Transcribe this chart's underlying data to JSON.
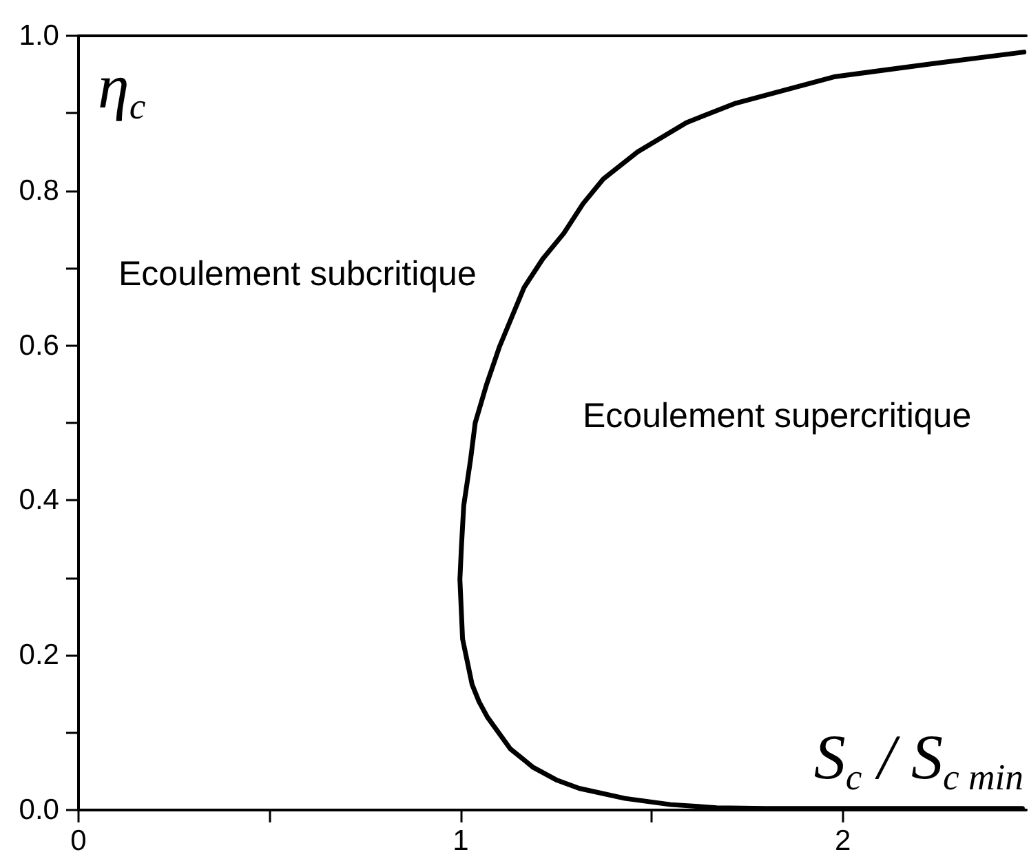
{
  "chart_data": {
    "type": "line",
    "xlabel": "S$_{c}$ / S$_{c min}$",
    "ylabel": "η$_{c}$",
    "annotations": [
      "Ecoulement subcritique",
      "Ecoulement supercritique"
    ],
    "xlim": [
      0,
      2.48
    ],
    "ylim": [
      0,
      1
    ],
    "xticks": [
      0,
      {
        "value": 0.5,
        "label": null
      },
      1,
      {
        "value": 1.5,
        "label": null
      },
      2
    ],
    "yticks": [
      {
        "value": 0,
        "label": "0.0"
      },
      {
        "value": 0.1,
        "label": null
      },
      {
        "value": 0.2,
        "label": "0.2"
      },
      {
        "value": 0.3,
        "label": null
      },
      {
        "value": 0.4,
        "label": "0.4"
      },
      {
        "value": 0.5,
        "label": null
      },
      {
        "value": 0.6,
        "label": "0.6"
      },
      {
        "value": 0.7,
        "label": null
      },
      {
        "value": 0.8,
        "label": "0.8"
      },
      {
        "value": 0.9,
        "label": null
      },
      {
        "value": 1,
        "label": "1.0"
      }
    ],
    "series": [
      {
        "color": "#000000",
        "x": [
          2.47,
          2.1,
          1.8,
          1.67,
          1.55,
          1.43,
          1.31,
          1.25,
          1.19,
          1.13,
          1.07,
          1.048,
          1.03,
          1.005,
          0.998,
          1.002,
          1.008,
          1.026,
          1.038,
          1.068,
          1.102,
          1.166,
          1.215,
          1.27,
          1.32,
          1.373,
          1.463,
          1.591,
          1.72,
          1.977,
          2.234,
          2.474
        ],
        "values": [
          0.002,
          0.002,
          0.002,
          0.003,
          0.007,
          0.015,
          0.028,
          0.039,
          0.055,
          0.079,
          0.12,
          0.14,
          0.162,
          0.221,
          0.298,
          0.34,
          0.393,
          0.453,
          0.5,
          0.55,
          0.599,
          0.675,
          0.712,
          0.745,
          0.783,
          0.815,
          0.85,
          0.888,
          0.913,
          0.947,
          0.964,
          0.979
        ]
      }
    ]
  }
}
